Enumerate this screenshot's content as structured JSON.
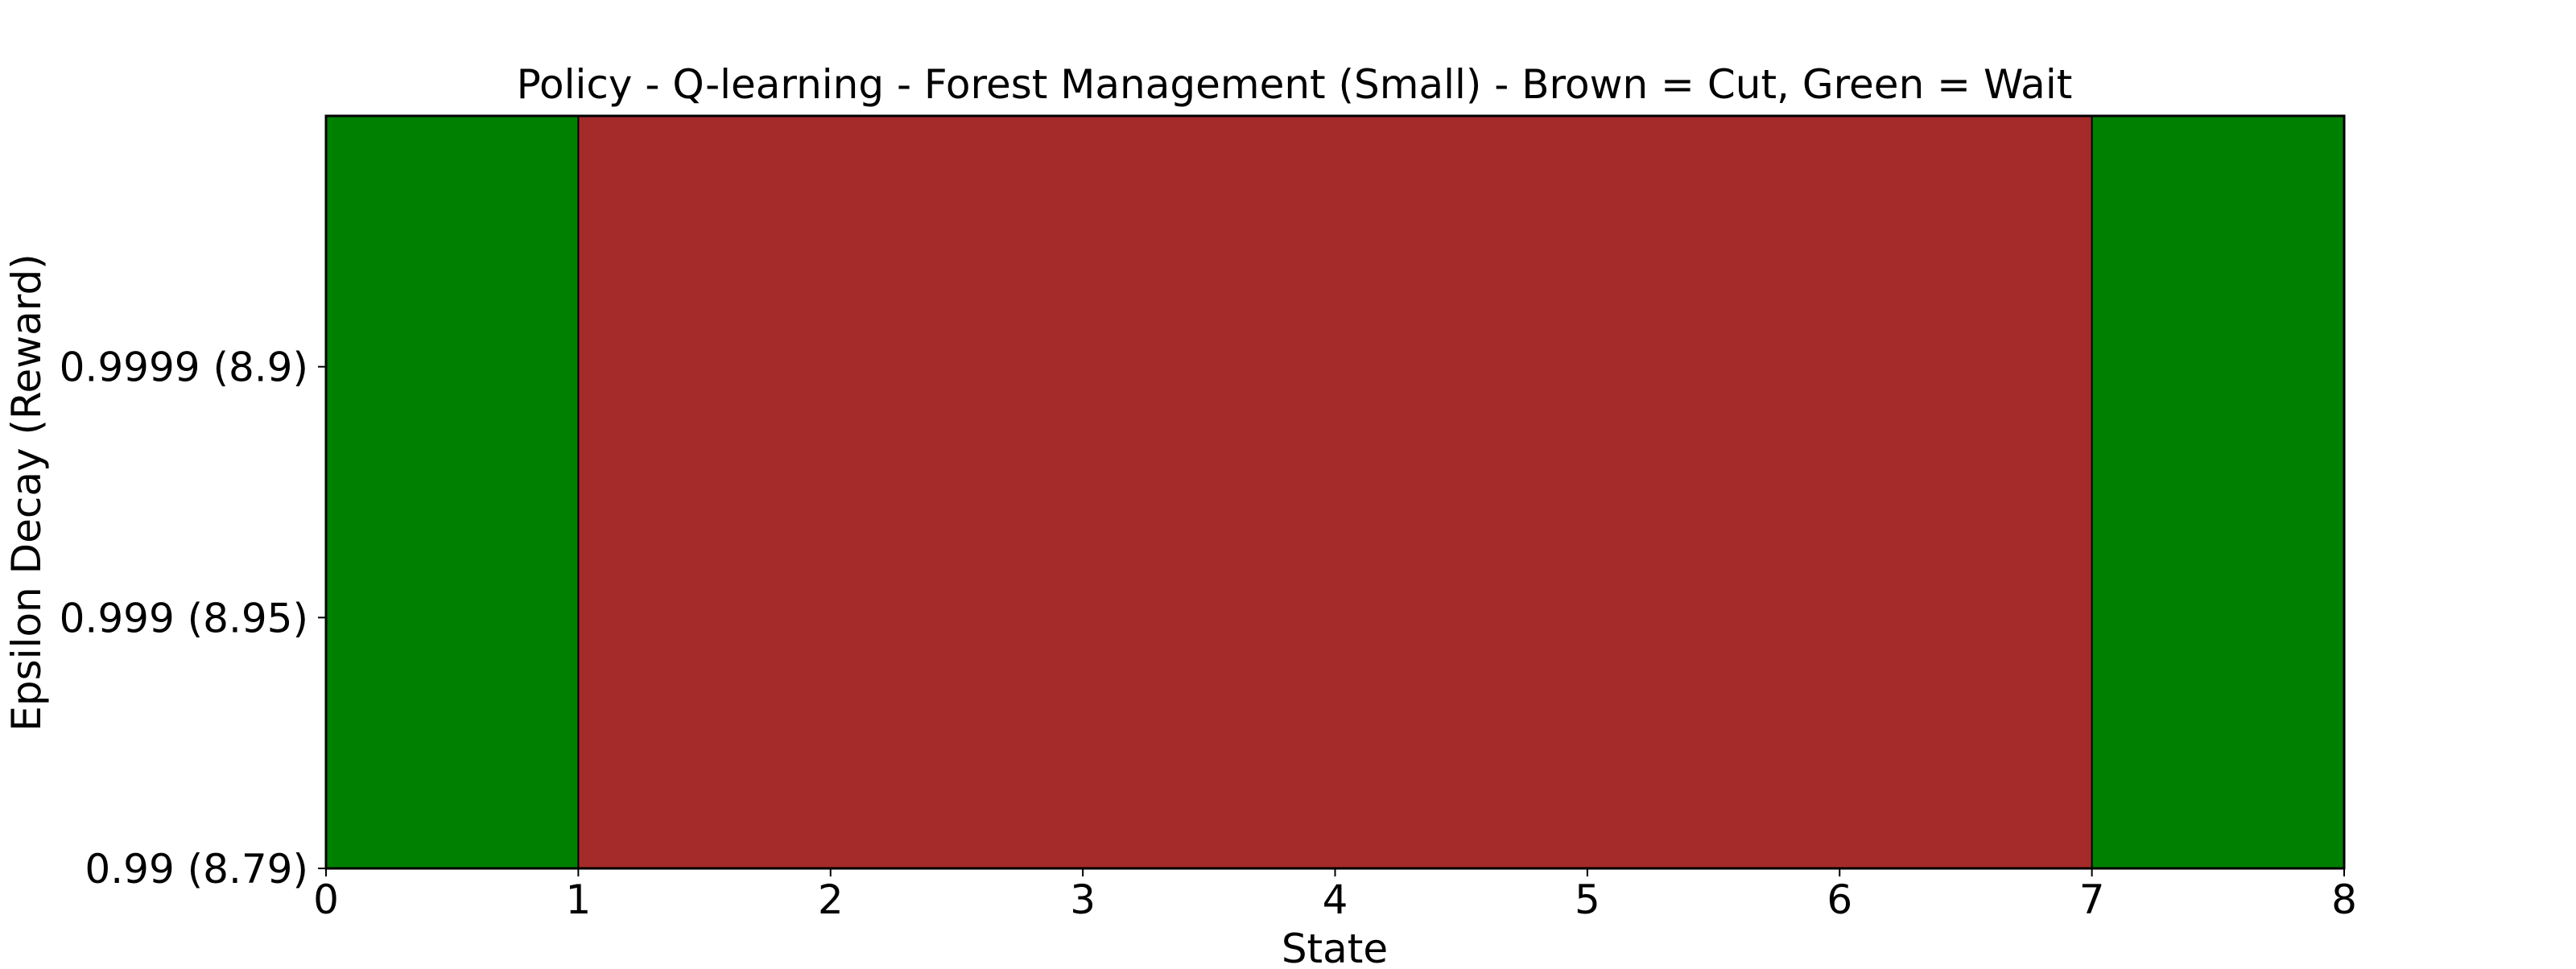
{
  "chart_data": {
    "type": "heatmap",
    "title": "Policy - Q-learning - Forest Management (Small) - Brown = Cut, Green = Wait",
    "xlabel": "State",
    "ylabel": "Epsilon Decay (Reward)",
    "xlim": [
      0,
      8
    ],
    "xticks": [
      "0",
      "1",
      "2",
      "3",
      "4",
      "5",
      "6",
      "7",
      "8"
    ],
    "yticks": [
      "0.9999 (8.9)",
      "0.999 (8.95)",
      "0.99 (8.79)"
    ],
    "legend": "none",
    "grid": false,
    "actions": {
      "Cut": "#a52a2a",
      "Wait": "#008000"
    },
    "segments": [
      {
        "x0": 0,
        "x1": 1,
        "action": "Wait"
      },
      {
        "x0": 1,
        "x1": 7,
        "action": "Cut"
      },
      {
        "x0": 7,
        "x1": 8,
        "action": "Wait"
      }
    ]
  }
}
